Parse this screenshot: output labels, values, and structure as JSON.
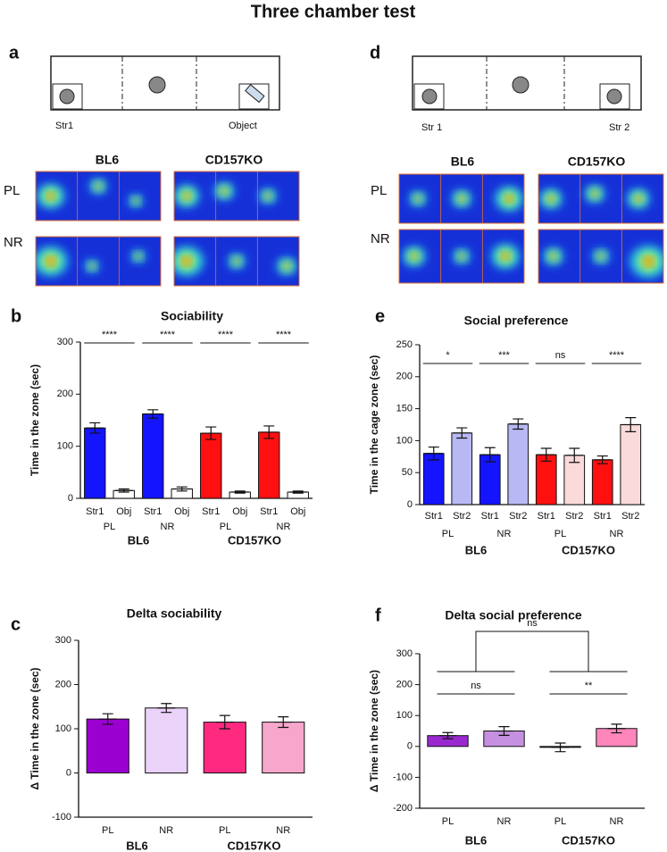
{
  "title": "Three chamber test",
  "diagrams": [
    {
      "panel_label": "a",
      "left": "Str1",
      "right": "Object"
    },
    {
      "panel_label": "d",
      "left": "Str 1",
      "right": "Str 2"
    }
  ],
  "heatmaps": [
    {
      "columns": [
        "BL6",
        "CD157KO"
      ],
      "rows": [
        "PL",
        "NR"
      ]
    },
    {
      "columns": [
        "BL6",
        "CD157KO"
      ],
      "rows": [
        "PL",
        "NR"
      ]
    }
  ],
  "chart_data": [
    {
      "type": "bar",
      "panel_label": "b",
      "title": "Sociability",
      "y_label": "Time in the zone (sec)",
      "categories": [
        "Str1",
        "Obj",
        "Str1",
        "Obj",
        "Str1",
        "Obj",
        "Str1",
        "Obj"
      ],
      "groups": [
        "PL",
        "NR",
        "PL",
        "NR"
      ],
      "supergroups": [
        "BL6",
        "CD157KO"
      ],
      "values": [
        135,
        15,
        162,
        18,
        125,
        12,
        127,
        12
      ],
      "errors": [
        10,
        3,
        8,
        4,
        12,
        2,
        12,
        2
      ],
      "colors": [
        "#1414ff",
        "#ffffff",
        "#1414ff",
        "#ffffff",
        "#ff1010",
        "#ffffff",
        "#ff1010",
        "#ffffff"
      ],
      "ylim": [
        0,
        300
      ],
      "yticks": [
        0,
        100,
        200,
        300
      ],
      "significance": [
        "****",
        "****",
        "****",
        "****"
      ]
    },
    {
      "type": "bar",
      "panel_label": "e",
      "title": "Social preference",
      "y_label": "Time in the cage zone (sec)",
      "categories": [
        "Str1",
        "Str2",
        "Str1",
        "Str2",
        "Str1",
        "Str2",
        "Str1",
        "Str2"
      ],
      "groups": [
        "PL",
        "NR",
        "PL",
        "NR"
      ],
      "supergroups": [
        "BL6",
        "CD157KO"
      ],
      "values": [
        80,
        112,
        78,
        126,
        78,
        77,
        70,
        125
      ],
      "errors": [
        10,
        8,
        11,
        8,
        10,
        11,
        6,
        11
      ],
      "colors": [
        "#1414ff",
        "#b8b8f4",
        "#1414ff",
        "#b8b8f4",
        "#ff1010",
        "#fadada",
        "#ff1010",
        "#fadada"
      ],
      "ylim": [
        0,
        250
      ],
      "yticks": [
        0,
        50,
        100,
        150,
        200,
        250
      ],
      "significance": [
        "*",
        "***",
        "ns",
        "****"
      ]
    },
    {
      "type": "bar",
      "panel_label": "c",
      "title": "Delta sociability",
      "y_label": "Δ Time in the zone (sec)",
      "categories": [
        "PL",
        "NR",
        "PL",
        "NR"
      ],
      "supergroups": [
        "BL6",
        "CD157KO"
      ],
      "values": [
        122,
        147,
        115,
        115
      ],
      "errors": [
        12,
        10,
        15,
        12
      ],
      "colors": [
        "#9a00d0",
        "#ead2f8",
        "#ff2a80",
        "#f7a6cc"
      ],
      "ylim": [
        -100,
        300
      ],
      "yticks": [
        -100,
        0,
        100,
        200,
        300
      ],
      "significance": []
    },
    {
      "type": "bar",
      "panel_label": "f",
      "title": "Delta social preference",
      "y_label": "Δ Time in the zone (sec)",
      "categories": [
        "PL",
        "NR",
        "PL",
        "NR"
      ],
      "supergroups": [
        "BL6",
        "CD157KO"
      ],
      "values": [
        35,
        50,
        -3,
        58
      ],
      "errors": [
        10,
        14,
        14,
        14
      ],
      "colors": [
        "#9a2ad0",
        "#c690e0",
        "#ff1a80",
        "#ff86bb"
      ],
      "ylim": [
        -200,
        300
      ],
      "yticks": [
        -200,
        -100,
        0,
        100,
        200,
        300
      ],
      "significance": [
        "ns",
        "**",
        "ns"
      ]
    }
  ]
}
